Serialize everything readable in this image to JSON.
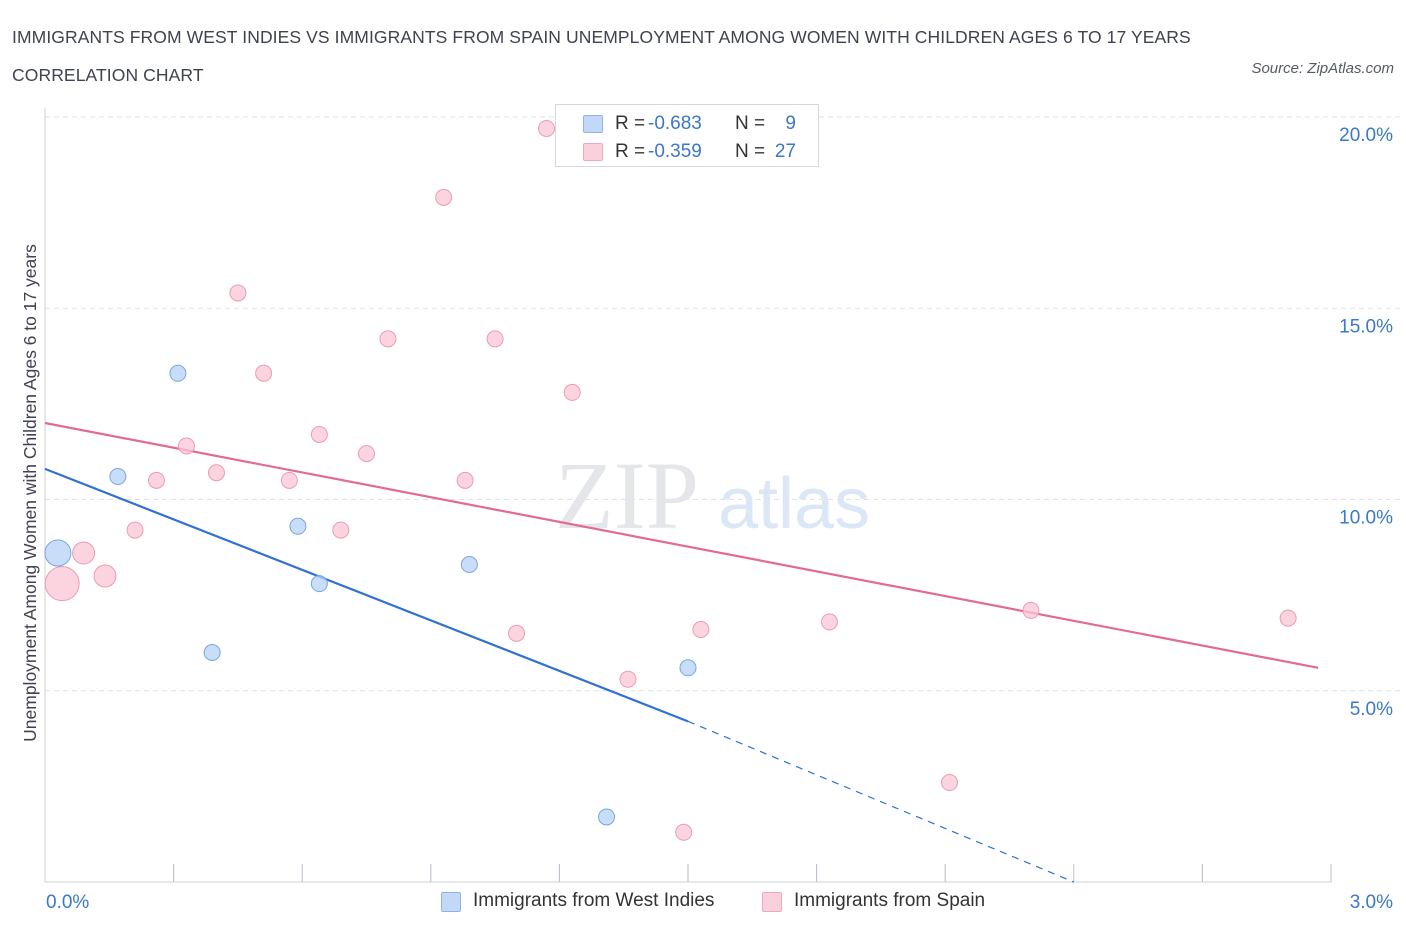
{
  "title": "IMMIGRANTS FROM WEST INDIES VS IMMIGRANTS FROM SPAIN UNEMPLOYMENT AMONG WOMEN WITH CHILDREN AGES 6 TO 17 YEARS CORRELATION CHART",
  "source": "Source: ZipAtlas.com",
  "watermark": {
    "zip": "ZIP",
    "atlas": "atlas"
  },
  "legend": {
    "rows": [
      {
        "r_label": "R =",
        "r_value": "-0.683",
        "n_label": "N =",
        "n_value": "9"
      },
      {
        "r_label": "R =",
        "r_value": "-0.359",
        "n_label": "N =",
        "n_value": "27"
      }
    ]
  },
  "colors": {
    "blue_fill": "#b6d1f5",
    "blue_stroke": "#7aa6dc",
    "blue_line": "#2f72d0",
    "pink_fill": "#f9c6d5",
    "pink_stroke": "#eb9bb3",
    "pink_line": "#e36a93",
    "tick_label": "#3a78c9",
    "grid": "#dfe1e6"
  },
  "chart_data": {
    "type": "scatter",
    "title": "IMMIGRANTS FROM WEST INDIES VS IMMIGRANTS FROM SPAIN UNEMPLOYMENT AMONG WOMEN WITH CHILDREN AGES 6 TO 17 YEARS CORRELATION CHART",
    "xlabel": "",
    "ylabel": "Unemployment Among Women with Children Ages 6 to 17 years",
    "xlim": [
      0,
      3.0
    ],
    "ylim": [
      0,
      20.0
    ],
    "x_tick_labels": [
      "0.0%",
      "3.0%"
    ],
    "y_ticks": [
      5,
      10,
      15,
      20
    ],
    "y_tick_labels": [
      "5.0%",
      "10.0%",
      "15.0%",
      "20.0%"
    ],
    "grid": true,
    "legend_position": "top-center",
    "series": [
      {
        "name": "Immigrants from West Indies",
        "color": "#b6d1f5",
        "points": [
          {
            "x": 0.03,
            "y": 8.6,
            "size": "large"
          },
          {
            "x": 0.17,
            "y": 10.6,
            "size": "normal"
          },
          {
            "x": 0.31,
            "y": 13.3,
            "size": "normal"
          },
          {
            "x": 0.39,
            "y": 6.0,
            "size": "normal"
          },
          {
            "x": 0.59,
            "y": 9.3,
            "size": "normal"
          },
          {
            "x": 0.64,
            "y": 7.8,
            "size": "normal"
          },
          {
            "x": 0.99,
            "y": 8.3,
            "size": "normal"
          },
          {
            "x": 1.31,
            "y": 1.7,
            "size": "normal"
          },
          {
            "x": 1.5,
            "y": 5.6,
            "size": "normal"
          }
        ],
        "trendline": {
          "x0": 0.0,
          "y0": 10.8,
          "x1": 1.5,
          "y1": 4.2,
          "dashed_to": {
            "x": 2.4,
            "y": 0.0
          }
        }
      },
      {
        "name": "Immigrants from Spain",
        "color": "#f9c6d5",
        "points": [
          {
            "x": 0.04,
            "y": 7.8,
            "size": "xlarge"
          },
          {
            "x": 0.09,
            "y": 8.6,
            "size": "medium"
          },
          {
            "x": 0.14,
            "y": 8.0,
            "size": "medium"
          },
          {
            "x": 0.21,
            "y": 9.2,
            "size": "normal"
          },
          {
            "x": 0.26,
            "y": 10.5,
            "size": "normal"
          },
          {
            "x": 0.33,
            "y": 11.4,
            "size": "normal"
          },
          {
            "x": 0.4,
            "y": 10.7,
            "size": "normal"
          },
          {
            "x": 0.45,
            "y": 15.4,
            "size": "normal"
          },
          {
            "x": 0.51,
            "y": 13.3,
            "size": "normal"
          },
          {
            "x": 0.57,
            "y": 10.5,
            "size": "normal"
          },
          {
            "x": 0.64,
            "y": 11.7,
            "size": "normal"
          },
          {
            "x": 0.69,
            "y": 9.2,
            "size": "normal"
          },
          {
            "x": 0.75,
            "y": 11.2,
            "size": "normal"
          },
          {
            "x": 0.8,
            "y": 14.2,
            "size": "normal"
          },
          {
            "x": 0.93,
            "y": 17.9,
            "size": "normal"
          },
          {
            "x": 0.98,
            "y": 10.5,
            "size": "normal"
          },
          {
            "x": 1.05,
            "y": 14.2,
            "size": "normal"
          },
          {
            "x": 1.1,
            "y": 6.5,
            "size": "normal"
          },
          {
            "x": 1.17,
            "y": 19.7,
            "size": "normal"
          },
          {
            "x": 1.23,
            "y": 12.8,
            "size": "normal"
          },
          {
            "x": 1.36,
            "y": 5.3,
            "size": "normal"
          },
          {
            "x": 1.49,
            "y": 1.3,
            "size": "normal"
          },
          {
            "x": 1.53,
            "y": 6.6,
            "size": "normal"
          },
          {
            "x": 1.83,
            "y": 6.8,
            "size": "normal"
          },
          {
            "x": 2.11,
            "y": 2.6,
            "size": "normal"
          },
          {
            "x": 2.3,
            "y": 7.1,
            "size": "normal"
          },
          {
            "x": 2.9,
            "y": 6.9,
            "size": "normal"
          }
        ],
        "trendline": {
          "x0": 0.0,
          "y0": 12.0,
          "x1": 2.97,
          "y1": 5.6
        }
      }
    ]
  }
}
